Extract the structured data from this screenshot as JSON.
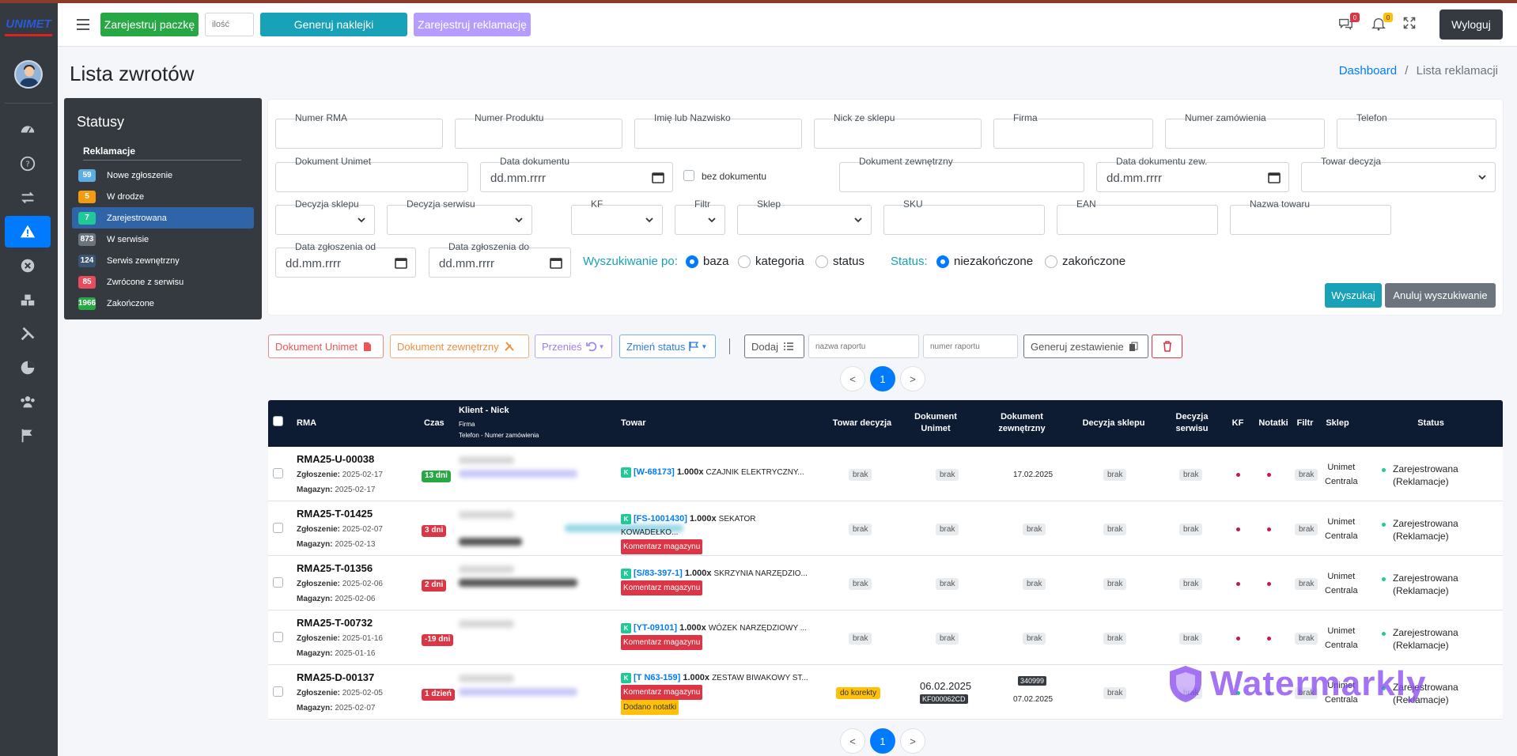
{
  "topbar": {
    "btn_register_package": "Zarejestruj paczkę",
    "qty_placeholder": "ilość",
    "btn_generate_labels": "Generuj naklejki",
    "btn_register_complaint": "Zarejestruj reklamację",
    "msg_count": "0",
    "notif_count": "0",
    "logout": "Wyloguj"
  },
  "sidebar": {
    "logo": "UNIMET"
  },
  "page": {
    "title": "Lista zwrotów",
    "breadcrumb_home": "Dashboard",
    "breadcrumb_sep": "/",
    "breadcrumb_current": "Lista reklamacji"
  },
  "statusy": {
    "title": "Statusy",
    "group": "Reklamacje",
    "items": [
      {
        "count": "59",
        "label": "Nowe zgłoszenie",
        "color": "#5dade2"
      },
      {
        "count": "5",
        "label": "W drodze",
        "color": "#f39c12"
      },
      {
        "count": "7",
        "label": "Zarejestrowana",
        "color": "#20c997"
      },
      {
        "count": "873",
        "label": "W serwisie",
        "color": "#6c757d"
      },
      {
        "count": "124",
        "label": "Serwis zewnętrzny",
        "color": "#3b5472"
      },
      {
        "count": "85",
        "label": "Zwrócone z serwisu",
        "color": "#e74c5c"
      },
      {
        "count": "1966",
        "label": "Zakończone",
        "color": "#28a745"
      }
    ]
  },
  "filters": {
    "numer_rma": "Numer RMA",
    "numer_produktu": "Numer Produktu",
    "imie_nazwisko": "Imię lub Nazwisko",
    "nick": "Nick ze sklepu",
    "firma": "Firma",
    "numer_zamowienia": "Numer zamówienia",
    "telefon": "Telefon",
    "dokument_unimet": "Dokument Unimet",
    "data_dokumentu": "Data dokumentu",
    "date_placeholder": "dd.mm.rrrr",
    "bez_dokumentu": "bez dokumentu",
    "dokument_zewnetrzny": "Dokument zewnętrzny",
    "data_dokumentu_zew": "Data dokumentu zew.",
    "towar_decyzja": "Towar decyzja",
    "decyzja_sklepu": "Decyzja sklepu",
    "decyzja_serwisu": "Decyzja serwisu",
    "kf": "KF",
    "filtr": "Filtr",
    "sklep": "Sklep",
    "sku": "SKU",
    "ean": "EAN",
    "nazwa_towaru": "Nazwa towaru",
    "data_od": "Data zgłoszenia od",
    "data_do": "Data zgłoszenia do",
    "wyszukiwanie_po": "Wyszukiwanie po:",
    "opt_baza": "baza",
    "opt_kategoria": "kategoria",
    "opt_status": "status",
    "status_lbl": "Status:",
    "opt_niezakonczone": "niezakończone",
    "opt_zakonczone": "zakończone",
    "btn_search": "Wyszukaj",
    "btn_cancel": "Anuluj wyszukiwanie"
  },
  "toolbar": {
    "dok_unimet": "Dokument Unimet",
    "dok_zew": "Dokument zewnętrzny",
    "przenies": "Przenieś",
    "zmien_status": "Zmień status",
    "dodaj": "Dodaj",
    "nazwa_raportu": "nazwa raportu",
    "numer_raportu": "numer raportu",
    "generuj": "Generuj zestawienie"
  },
  "pager": {
    "prev": "<",
    "current": "1",
    "next": ">"
  },
  "table": {
    "headers": {
      "rma": "RMA",
      "czas": "Czas",
      "klient": "Klient - Nick",
      "firma": "Firma",
      "telefon": "Telefon - Numer zamówienia",
      "towar": "Towar",
      "towar_decyzja": "Towar decyzja",
      "dok_unimet": "Dokument Unimet",
      "dok_zew": "Dokument zewnętrzny",
      "decyzja_sklepu": "Decyzja sklepu",
      "decyzja_serwisu": "Decyzja serwisu",
      "kf": "KF",
      "notatki": "Notatki",
      "filtr": "Filtr",
      "sklep": "Sklep",
      "status": "Status"
    },
    "rows": [
      {
        "rma": "RMA25-U-00038",
        "zgl_lbl": "Zgłoszenie:",
        "zgl": "2025-02-17",
        "mag_lbl": "Magazyn:",
        "mag": "2025-02-17",
        "czas": "13 dni",
        "czas_color": "#28a745",
        "sku": "[W-68173]",
        "qty": "1.000x",
        "name": "CZAJNIK ELEKTRYCZNY...",
        "tags": [],
        "towar_dec": "brak",
        "dok_unimet": "brak",
        "dok_zew": "17.02.2025",
        "dec_sklepu": "brak",
        "dec_serwisu": "brak",
        "filtr": "brak",
        "sklep1": "Unimet",
        "sklep2": "Centrala",
        "status1": "Zarejestrowana",
        "status2": "(Reklamacje)"
      },
      {
        "rma": "RMA25-T-01425",
        "zgl_lbl": "Zgłoszenie:",
        "zgl": "2025-02-07",
        "mag_lbl": "Magazyn:",
        "mag": "2025-02-13",
        "czas": "3 dni",
        "czas_color": "#dc3545",
        "sku": "[FS-1001430]",
        "qty": "1.000x",
        "name": "SEKATOR KOWADEŁKO...",
        "tags": [
          "Komentarz magazynu"
        ],
        "towar_dec": "brak",
        "dok_unimet": "brak",
        "dok_zew": "brak",
        "dec_sklepu": "brak",
        "dec_serwisu": "brak",
        "filtr": "brak",
        "sklep1": "Unimet",
        "sklep2": "Centrala",
        "status1": "Zarejestrowana",
        "status2": "(Reklamacje)"
      },
      {
        "rma": "RMA25-T-01356",
        "zgl_lbl": "Zgłoszenie:",
        "zgl": "2025-02-06",
        "mag_lbl": "Magazyn:",
        "mag": "2025-02-06",
        "czas": "2 dni",
        "czas_color": "#dc3545",
        "sku": "[S/83-397-1]",
        "qty": "1.000x",
        "name": "SKRZYNIA NARZĘDZIO...",
        "tags": [
          "Komentarz magazynu"
        ],
        "towar_dec": "brak",
        "dok_unimet": "brak",
        "dok_zew": "brak",
        "dec_sklepu": "brak",
        "dec_serwisu": "brak",
        "filtr": "brak",
        "sklep1": "Unimet",
        "sklep2": "Centrala",
        "status1": "Zarejestrowana",
        "status2": "(Reklamacje)"
      },
      {
        "rma": "RMA25-T-00732",
        "zgl_lbl": "Zgłoszenie:",
        "zgl": "2025-01-16",
        "mag_lbl": "Magazyn:",
        "mag": "2025-01-16",
        "czas": "-19 dni",
        "czas_color": "#dc3545",
        "sku": "[YT-09101]",
        "qty": "1.000x",
        "name": "WÓZEK NARZĘDZIOWY ...",
        "tags": [
          "Komentarz magazynu"
        ],
        "towar_dec": "brak",
        "dok_unimet": "brak",
        "dok_zew": "brak",
        "dec_sklepu": "brak",
        "dec_serwisu": "brak",
        "filtr": "brak",
        "sklep1": "Unimet",
        "sklep2": "Centrala",
        "status1": "Zarejestrowana",
        "status2": "(Reklamacje)"
      },
      {
        "rma": "RMA25-D-00137",
        "zgl_lbl": "Zgłoszenie:",
        "zgl": "2025-02-05",
        "mag_lbl": "Magazyn:",
        "mag": "2025-02-07",
        "czas": "1 dzień",
        "czas_color": "#dc3545",
        "sku": "[T N63-159]",
        "qty": "1.000x",
        "name": "ZESTAW BIWAKOWY ST...",
        "tags": [
          "Komentarz magazynu"
        ],
        "tags2": [
          "Dodano notatki"
        ],
        "towar_dec": "do korekty",
        "dok_unimet_date": "06.02.2025",
        "dok_unimet_num": "KF000062CD",
        "dok_zew_num": "340999",
        "dok_zew_date": "07.02.2025",
        "dec_sklepu": "brak",
        "dec_serwisu": "brak",
        "filtr": "brak",
        "sklep1": "Unimet",
        "sklep2": "Centrala",
        "status1": "Zarejestrowana",
        "status2": "(Reklamacje)"
      }
    ]
  },
  "watermark": "Watermarkly"
}
